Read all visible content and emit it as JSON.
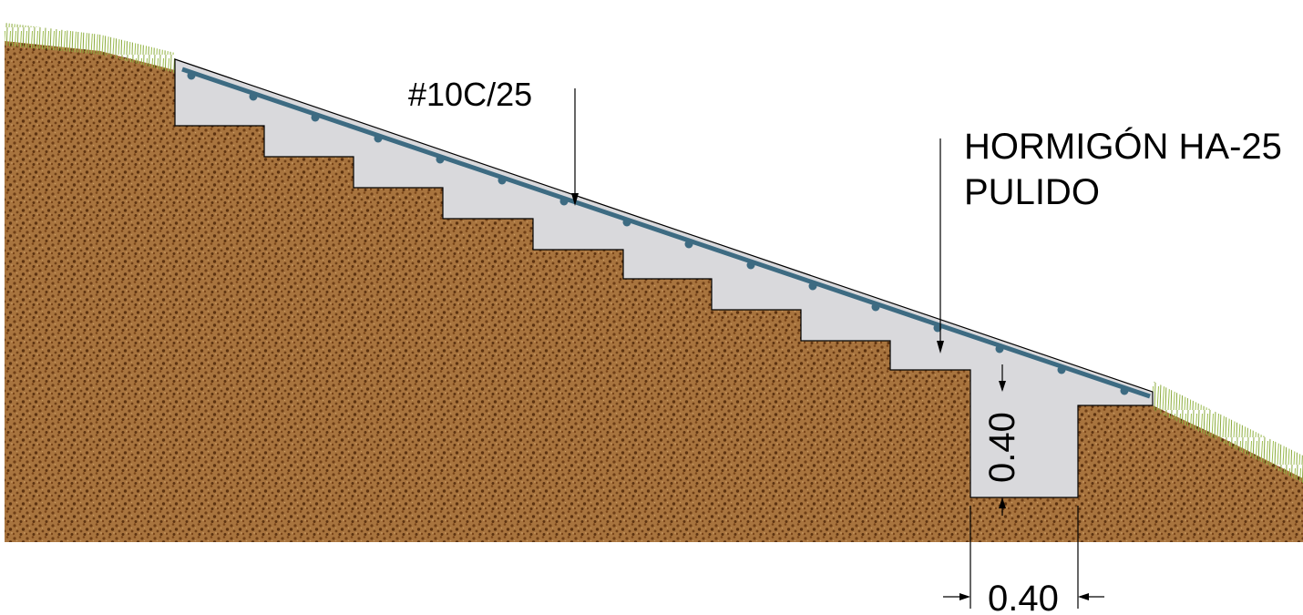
{
  "annotations": {
    "rebar": "#10C/25",
    "concrete_line1": "HORMIGÓN HA-25",
    "concrete_line2": "PULIDO"
  },
  "dimensions": {
    "footing_height": "0.40",
    "footing_width": "0.40"
  },
  "colors": {
    "soil": "#a8743e",
    "soil_speckle": "#6e3f17",
    "concrete": "#d9d9dc",
    "rebar": "#3d6b82",
    "grass": "#8aa83c"
  }
}
